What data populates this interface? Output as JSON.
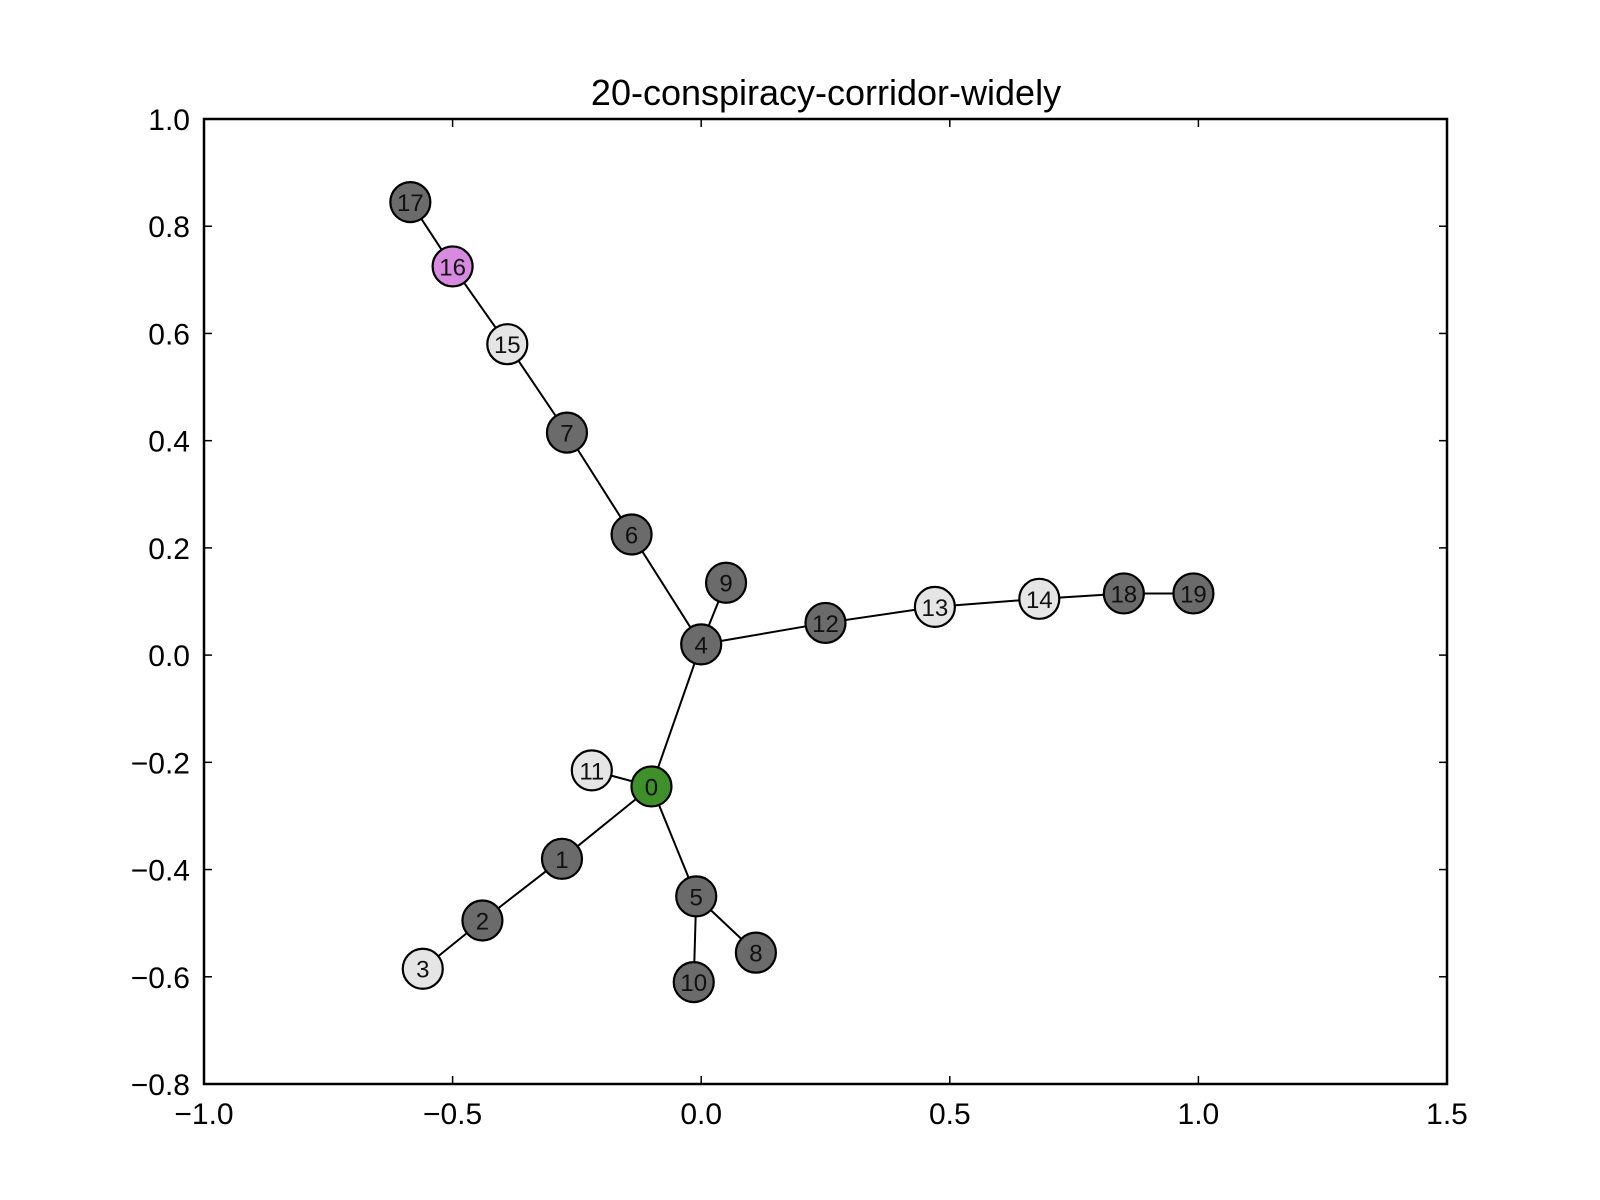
{
  "chart_data": {
    "type": "network",
    "title": "20-conspiracy-corridor-widely",
    "xlim": [
      -1.0,
      1.5
    ],
    "ylim": [
      -0.8,
      1.0
    ],
    "xticks": [
      -1.0,
      -0.5,
      0.0,
      0.5,
      1.0,
      1.5
    ],
    "yticks": [
      -0.8,
      -0.6,
      -0.4,
      -0.2,
      0.0,
      0.2,
      0.4,
      0.6,
      0.8,
      1.0
    ],
    "xtick_labels": [
      "−1.0",
      "−0.5",
      "0.0",
      "0.5",
      "1.0",
      "1.5"
    ],
    "ytick_labels": [
      "−0.8",
      "−0.6",
      "−0.4",
      "−0.2",
      "0.0",
      "0.2",
      "0.4",
      "0.6",
      "0.8",
      "1.0"
    ],
    "colors": {
      "dark": "#6b6b6b",
      "light": "#e5e5e5",
      "green": "#3f8f2b",
      "magenta": "#d88ae0"
    },
    "nodes": [
      {
        "id": "0",
        "x": -0.1,
        "y": -0.245,
        "color": "green"
      },
      {
        "id": "1",
        "x": -0.28,
        "y": -0.38,
        "color": "dark"
      },
      {
        "id": "2",
        "x": -0.44,
        "y": -0.495,
        "color": "dark"
      },
      {
        "id": "3",
        "x": -0.56,
        "y": -0.585,
        "color": "light"
      },
      {
        "id": "4",
        "x": 0.0,
        "y": 0.02,
        "color": "dark"
      },
      {
        "id": "5",
        "x": -0.01,
        "y": -0.45,
        "color": "dark"
      },
      {
        "id": "6",
        "x": -0.14,
        "y": 0.225,
        "color": "dark"
      },
      {
        "id": "7",
        "x": -0.27,
        "y": 0.415,
        "color": "dark"
      },
      {
        "id": "8",
        "x": 0.11,
        "y": -0.555,
        "color": "dark"
      },
      {
        "id": "9",
        "x": 0.05,
        "y": 0.135,
        "color": "dark"
      },
      {
        "id": "10",
        "x": -0.015,
        "y": -0.61,
        "color": "dark"
      },
      {
        "id": "11",
        "x": -0.22,
        "y": -0.215,
        "color": "light"
      },
      {
        "id": "12",
        "x": 0.25,
        "y": 0.06,
        "color": "dark"
      },
      {
        "id": "13",
        "x": 0.47,
        "y": 0.09,
        "color": "light"
      },
      {
        "id": "14",
        "x": 0.68,
        "y": 0.105,
        "color": "light"
      },
      {
        "id": "15",
        "x": -0.39,
        "y": 0.58,
        "color": "light"
      },
      {
        "id": "16",
        "x": -0.5,
        "y": 0.725,
        "color": "magenta"
      },
      {
        "id": "17",
        "x": -0.585,
        "y": 0.845,
        "color": "dark"
      },
      {
        "id": "18",
        "x": 0.85,
        "y": 0.115,
        "color": "dark"
      },
      {
        "id": "19",
        "x": 0.99,
        "y": 0.115,
        "color": "dark"
      }
    ],
    "edges": [
      [
        "0",
        "4"
      ],
      [
        "0",
        "11"
      ],
      [
        "0",
        "1"
      ],
      [
        "1",
        "2"
      ],
      [
        "2",
        "3"
      ],
      [
        "0",
        "5"
      ],
      [
        "5",
        "8"
      ],
      [
        "5",
        "10"
      ],
      [
        "4",
        "9"
      ],
      [
        "4",
        "6"
      ],
      [
        "6",
        "7"
      ],
      [
        "7",
        "15"
      ],
      [
        "15",
        "16"
      ],
      [
        "16",
        "17"
      ],
      [
        "4",
        "12"
      ],
      [
        "12",
        "13"
      ],
      [
        "13",
        "14"
      ],
      [
        "14",
        "18"
      ],
      [
        "18",
        "19"
      ]
    ]
  }
}
